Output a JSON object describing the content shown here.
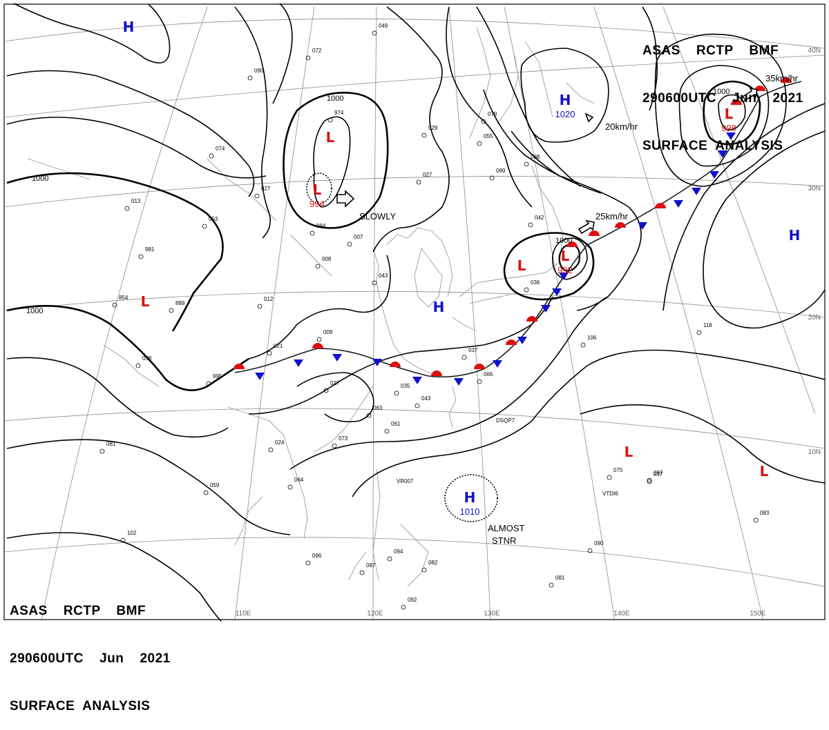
{
  "header": {
    "line1": "ASAS    RCTP    BMF",
    "line2": "290600UTC    Jun    2021",
    "line3": "SURFACE  ANALYSIS"
  },
  "footer": {
    "line1": "ASAS    RCTP    BMF",
    "line2": "290600UTC    Jun    2021",
    "line3": "SURFACE  ANALYSIS"
  },
  "colors": {
    "high": "#1010cc",
    "low": "#dd1010",
    "warm_front": "#dd1010",
    "cold_front": "#1010cc",
    "isobar": "#000000",
    "grid": "#888888",
    "coast": "#999999"
  },
  "lon_labels": [
    "110E",
    "120E",
    "130E",
    "140E",
    "150E"
  ],
  "lat_labels": [
    "40N",
    "30N",
    "20N",
    "10N"
  ],
  "isobar_labels": [
    "1000",
    "1000",
    "1000",
    "1000",
    "1000"
  ],
  "pressure_centers": [
    {
      "type": "H",
      "value": ""
    },
    {
      "type": "L",
      "value": ""
    },
    {
      "type": "L",
      "value": "994"
    },
    {
      "type": "H",
      "value": "1020"
    },
    {
      "type": "L",
      "value": "998"
    },
    {
      "type": "L",
      "value": ""
    },
    {
      "type": "L",
      "value": "992"
    },
    {
      "type": "H",
      "value": ""
    },
    {
      "type": "L",
      "value": ""
    },
    {
      "type": "H",
      "value": ""
    },
    {
      "type": "H",
      "value": "1010"
    },
    {
      "type": "L",
      "value": ""
    },
    {
      "type": "L",
      "value": ""
    }
  ],
  "motions": [
    "SLOWLY",
    "20km/hr",
    "25km/hr",
    "35km/hr",
    "ALMOST",
    "STNR"
  ],
  "station_labels": [
    "DSQP7",
    "VR007",
    "VTDI6"
  ],
  "station_numbers": [
    "049",
    "072",
    "090",
    "974",
    "079",
    "029",
    "027",
    "074",
    "027",
    "013",
    "053",
    "981",
    "854",
    "889",
    "012",
    "008",
    "009",
    "021",
    "027",
    "035",
    "037",
    "066",
    "043",
    "063",
    "061",
    "073",
    "024",
    "064",
    "059",
    "081",
    "102",
    "096",
    "097",
    "087",
    "094",
    "082",
    "092",
    "081",
    "090",
    "075",
    "097",
    "083",
    "106",
    "118",
    "036",
    "042",
    "089",
    "088",
    "055",
    "038",
    "995",
    "984",
    "007",
    "043"
  ]
}
